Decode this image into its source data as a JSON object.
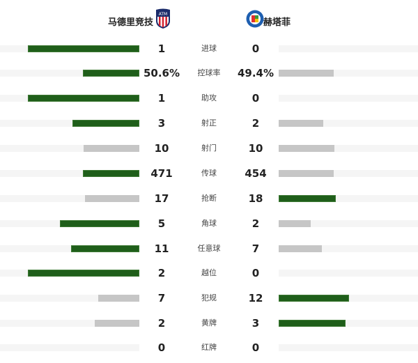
{
  "home": {
    "name": "马德里竞技",
    "logo_icon": "atletico-madrid-crest"
  },
  "away": {
    "name": "赫塔菲",
    "logo_icon": "getafe-crest"
  },
  "colors": {
    "leader_bar": "#1f5e1a",
    "trailing_bar": "#c6c6c6",
    "track": "#f5f5f5"
  },
  "stats": [
    {
      "label": "进球",
      "home": "1",
      "away": "0",
      "home_value": 1,
      "away_value": 0
    },
    {
      "label": "控球率",
      "home": "50.6%",
      "away": "49.4%",
      "home_value": 50.6,
      "away_value": 49.4
    },
    {
      "label": "助攻",
      "home": "1",
      "away": "0",
      "home_value": 1,
      "away_value": 0
    },
    {
      "label": "射正",
      "home": "3",
      "away": "2",
      "home_value": 3,
      "away_value": 2
    },
    {
      "label": "射门",
      "home": "10",
      "away": "10",
      "home_value": 10,
      "away_value": 10
    },
    {
      "label": "传球",
      "home": "471",
      "away": "454",
      "home_value": 471,
      "away_value": 454
    },
    {
      "label": "抢断",
      "home": "17",
      "away": "18",
      "home_value": 17,
      "away_value": 18
    },
    {
      "label": "角球",
      "home": "5",
      "away": "2",
      "home_value": 5,
      "away_value": 2
    },
    {
      "label": "任意球",
      "home": "11",
      "away": "7",
      "home_value": 11,
      "away_value": 7
    },
    {
      "label": "越位",
      "home": "2",
      "away": "0",
      "home_value": 2,
      "away_value": 0
    },
    {
      "label": "犯规",
      "home": "7",
      "away": "12",
      "home_value": 7,
      "away_value": 12
    },
    {
      "label": "黄牌",
      "home": "2",
      "away": "3",
      "home_value": 2,
      "away_value": 3
    },
    {
      "label": "红牌",
      "home": "0",
      "away": "0",
      "home_value": 0,
      "away_value": 0
    }
  ]
}
